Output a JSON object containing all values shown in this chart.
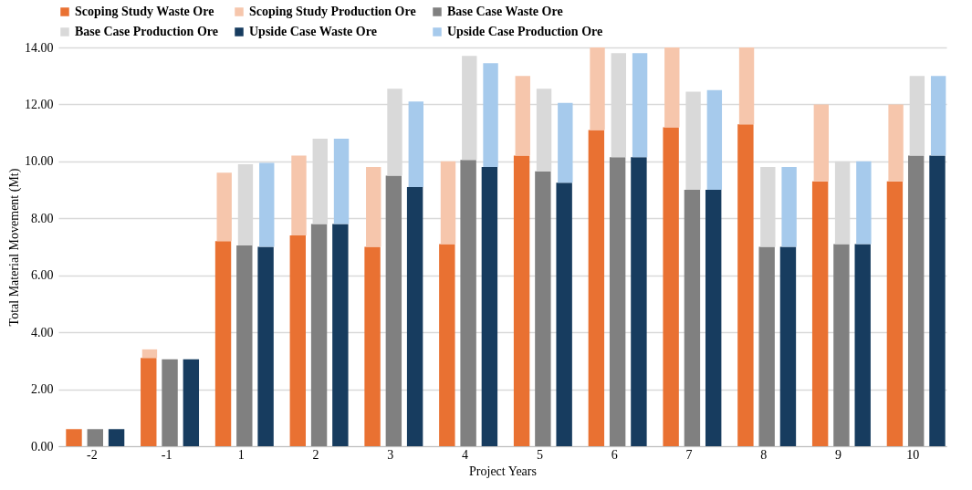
{
  "chart_data": {
    "type": "bar",
    "xlabel": "Project Years",
    "ylabel": "Total Material Movement (Mt)",
    "categories": [
      "-2",
      "-1",
      "1",
      "2",
      "3",
      "4",
      "5",
      "6",
      "7",
      "8",
      "9",
      "10"
    ],
    "series": [
      {
        "name": "Scoping Study Waste Ore",
        "color": "#e97132",
        "values": [
          0.6,
          3.1,
          7.2,
          7.4,
          7.0,
          7.1,
          10.2,
          11.1,
          11.2,
          11.3,
          9.3,
          9.3
        ]
      },
      {
        "name": "Scoping Study Production Ore",
        "color": "#f6c6ac",
        "values": [
          null,
          0.3,
          2.4,
          2.8,
          2.8,
          2.9,
          2.8,
          2.9,
          2.8,
          2.7,
          2.7,
          2.7
        ],
        "base": [
          null,
          3.1,
          7.2,
          7.4,
          7.0,
          7.1,
          10.2,
          11.1,
          11.2,
          11.3,
          9.3,
          9.3
        ]
      },
      {
        "name": "Base Case Waste Ore",
        "color": "#808080",
        "values": [
          0.6,
          3.05,
          7.05,
          7.8,
          9.5,
          10.05,
          9.65,
          10.15,
          9.0,
          7.0,
          7.1,
          10.2
        ]
      },
      {
        "name": "Base Case Production Ore",
        "color": "#d9d9d9",
        "values": [
          null,
          null,
          2.85,
          3.0,
          3.05,
          3.65,
          2.9,
          3.65,
          3.45,
          2.8,
          2.9,
          2.8
        ],
        "base": [
          null,
          null,
          7.05,
          7.8,
          9.5,
          10.05,
          9.65,
          10.15,
          9.0,
          7.0,
          7.1,
          10.2
        ]
      },
      {
        "name": "Upside Case Waste Ore",
        "color": "#173c5f",
        "values": [
          0.6,
          3.05,
          7.0,
          7.8,
          9.1,
          9.8,
          9.25,
          10.15,
          9.0,
          7.0,
          7.1,
          10.2
        ]
      },
      {
        "name": "Upside Case Production Ore",
        "color": "#a6caec",
        "values": [
          null,
          null,
          2.95,
          3.0,
          3.0,
          3.65,
          2.8,
          3.65,
          3.5,
          2.8,
          2.9,
          2.8
        ],
        "base": [
          null,
          null,
          7.0,
          7.8,
          9.1,
          9.8,
          9.25,
          10.15,
          9.0,
          7.0,
          7.1,
          10.2
        ]
      }
    ],
    "ylim": [
      0,
      14
    ],
    "yticks": [
      {
        "value": 0,
        "label": "0.00"
      },
      {
        "value": 2,
        "label": "2.00"
      },
      {
        "value": 4,
        "label": "4.00"
      },
      {
        "value": 6,
        "label": "6.00"
      },
      {
        "value": 8,
        "label": "8.00"
      },
      {
        "value": 10,
        "label": "10.00"
      },
      {
        "value": 12,
        "label": "12.00"
      },
      {
        "value": 14,
        "label": "14.00"
      }
    ],
    "grid": "y",
    "legend": "top"
  }
}
